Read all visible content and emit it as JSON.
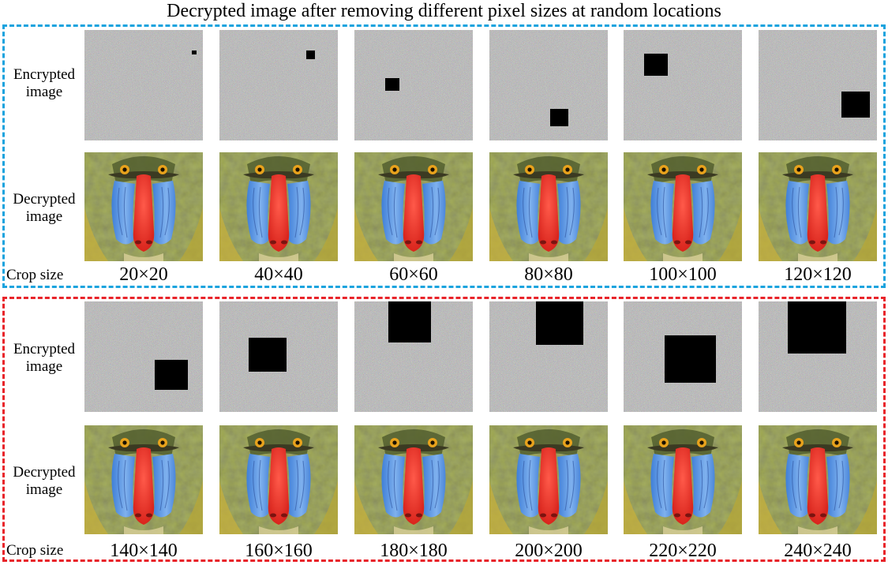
{
  "title": "Decrypted image after removing different pixel sizes at random locations",
  "row_labels": {
    "encrypted": [
      "Encrypted",
      "image"
    ],
    "decrypted": [
      "Decrypted",
      "image"
    ],
    "crop": "Crop size"
  },
  "colors": {
    "group1_border": "#1ba3de",
    "group2_border": "#e8242a",
    "noise_gray": "#8a8a8a",
    "crop_block": "#000000"
  },
  "groups": [
    {
      "name": "group-1",
      "crop_sizes": [
        "20×20",
        "40×40",
        "60×60",
        "80×80",
        "100×100",
        "120×120"
      ]
    },
    {
      "name": "group-2",
      "crop_sizes": [
        "140×140",
        "160×160",
        "180×180",
        "200×200",
        "220×220",
        "240×240"
      ]
    }
  ]
}
